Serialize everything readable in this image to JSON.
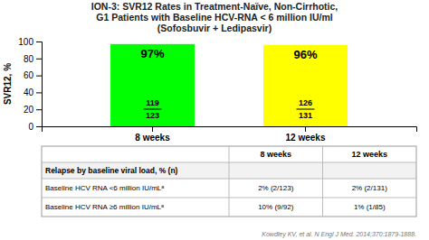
{
  "chart_data": {
    "type": "bar",
    "title": [
      "ION-3: SVR12 Rates in Treatment-Naïve, Non-Cirrhotic,",
      "G1 Patients with Baseline HCV-RNA < 6 million IU/ml",
      "(Sofosbuvir + Ledipasvir)"
    ],
    "categories": [
      "8 weeks",
      "12 weeks"
    ],
    "values": [
      97,
      96
    ],
    "value_labels": [
      "97%",
      "96%"
    ],
    "data_labels": true,
    "colors": [
      "#00ff00",
      "#ffff00"
    ],
    "numerators": [
      119,
      126
    ],
    "denominators": [
      123,
      131
    ],
    "ylabel": "SVR12, %",
    "ylim": [
      0,
      100
    ],
    "yticks": [
      0,
      20,
      40,
      60,
      80,
      100
    ],
    "grid": false,
    "table": {
      "header": "Relapse by baseline viral load, % (n)",
      "columns": [
        "8 weeks",
        "12 weeks"
      ],
      "rows": [
        [
          "Baseline HCV RNA <6 million IU/mLᵃ",
          "2% (2/123)",
          "2% (2/131)"
        ],
        [
          "Baseline HCV RNA ≥6 million IU/mLᵃ",
          "10% (9/92)",
          "1% (1/85)"
        ]
      ]
    },
    "footnote": "Kowdley KV, et al. N Engl J Med. 2014;370:1879-1888."
  }
}
